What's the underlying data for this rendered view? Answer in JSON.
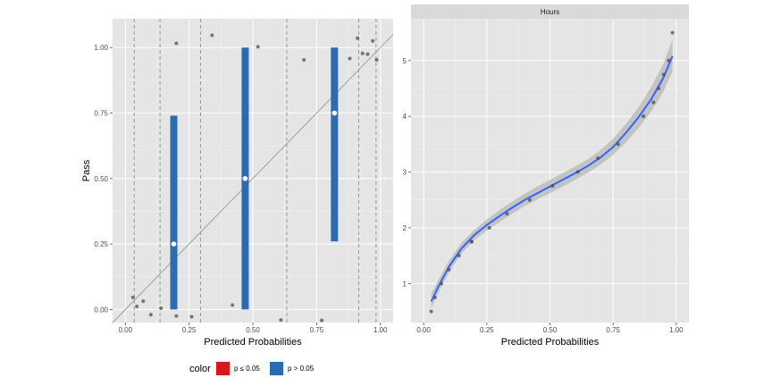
{
  "colors": {
    "panel_bg": "#e5e5e5",
    "grid_major": "#ffffff",
    "grid_minor": "#f2f2f2",
    "bar_significant": "#d7191c",
    "bar_nonsignificant": "#2b6cb0",
    "point": "#4d4d4d",
    "smooth_line": "#3366ff",
    "ribbon": "#bdbdbd",
    "reference_line": "#a0a0a0",
    "strip_bg": "#d9d9d9"
  },
  "chart_data": [
    {
      "type": "scatter",
      "panel": "left",
      "title": "",
      "xlabel": "Predicted Probabilities",
      "ylabel": "Pass",
      "xlim": [
        -0.05,
        1.05
      ],
      "ylim": [
        -0.05,
        1.11
      ],
      "x_ticks": [
        0.0,
        0.25,
        0.5,
        0.75,
        1.0
      ],
      "x_tick_labels": [
        "0.00",
        "0.25",
        "0.50",
        "0.75",
        "1.00"
      ],
      "y_ticks": [
        0.0,
        0.25,
        0.5,
        0.75,
        1.0
      ],
      "y_tick_labels": [
        "0.00",
        "0.25",
        "0.50",
        "0.75",
        "1.00"
      ],
      "reference_line": {
        "intercept": 0,
        "slope": 1
      },
      "bin_edges": [
        0.035,
        0.136,
        0.295,
        0.633,
        0.915,
        0.983
      ],
      "bins": [
        {
          "x": 0.19,
          "ymin": 0.0,
          "ymax": 0.74,
          "mean": 0.25,
          "significant": false
        },
        {
          "x": 0.47,
          "ymin": 0.0,
          "ymax": 1.0,
          "mean": 0.5,
          "significant": false
        },
        {
          "x": 0.82,
          "ymin": 0.26,
          "ymax": 1.0,
          "mean": 0.75,
          "significant": false
        }
      ],
      "points": [
        {
          "x": 0.03,
          "y": 0.046
        },
        {
          "x": 0.045,
          "y": 0.012
        },
        {
          "x": 0.07,
          "y": 0.032
        },
        {
          "x": 0.1,
          "y": -0.02
        },
        {
          "x": 0.14,
          "y": 0.005
        },
        {
          "x": 0.2,
          "y": 1.016
        },
        {
          "x": 0.2,
          "y": -0.025
        },
        {
          "x": 0.26,
          "y": -0.028
        },
        {
          "x": 0.34,
          "y": 1.047
        },
        {
          "x": 0.42,
          "y": 0.017
        },
        {
          "x": 0.52,
          "y": 1.003
        },
        {
          "x": 0.61,
          "y": -0.04
        },
        {
          "x": 0.7,
          "y": 0.953
        },
        {
          "x": 0.77,
          "y": -0.042
        },
        {
          "x": 0.88,
          "y": 0.958
        },
        {
          "x": 0.91,
          "y": 1.036
        },
        {
          "x": 0.93,
          "y": 0.978
        },
        {
          "x": 0.95,
          "y": 0.975
        },
        {
          "x": 0.97,
          "y": 1.025
        },
        {
          "x": 0.985,
          "y": 0.953
        }
      ],
      "legend": {
        "title": "color",
        "placement": "bottom-left",
        "entries": [
          {
            "label": "p ≤ 0.05",
            "color": "#d7191c"
          },
          {
            "label": "p > 0.05",
            "color": "#2b6cb0"
          }
        ]
      }
    },
    {
      "type": "scatter",
      "panel": "right",
      "facet_label": "Hours",
      "title": "",
      "xlabel": "Predicted Probabilities",
      "ylabel": "",
      "xlim": [
        -0.05,
        1.05
      ],
      "ylim": [
        0.3,
        5.75
      ],
      "x_ticks": [
        0.0,
        0.25,
        0.5,
        0.75,
        1.0
      ],
      "x_tick_labels": [
        "0.00",
        "0.25",
        "0.50",
        "0.75",
        "1.00"
      ],
      "y_ticks": [
        1,
        2,
        3,
        4,
        5
      ],
      "y_tick_labels": [
        "1",
        "2",
        "3",
        "4",
        "5"
      ],
      "points": [
        {
          "x": 0.03,
          "y": 0.5
        },
        {
          "x": 0.045,
          "y": 0.75
        },
        {
          "x": 0.07,
          "y": 1.0
        },
        {
          "x": 0.1,
          "y": 1.25
        },
        {
          "x": 0.14,
          "y": 1.5
        },
        {
          "x": 0.19,
          "y": 1.75
        },
        {
          "x": 0.19,
          "y": 1.75
        },
        {
          "x": 0.26,
          "y": 2.0
        },
        {
          "x": 0.33,
          "y": 2.25
        },
        {
          "x": 0.42,
          "y": 2.5
        },
        {
          "x": 0.51,
          "y": 2.75
        },
        {
          "x": 0.61,
          "y": 3.0
        },
        {
          "x": 0.69,
          "y": 3.25
        },
        {
          "x": 0.77,
          "y": 3.5
        },
        {
          "x": 0.87,
          "y": 4.0
        },
        {
          "x": 0.91,
          "y": 4.25
        },
        {
          "x": 0.93,
          "y": 4.5
        },
        {
          "x": 0.95,
          "y": 4.75
        },
        {
          "x": 0.97,
          "y": 5.0
        },
        {
          "x": 0.985,
          "y": 5.5
        }
      ],
      "smooth": {
        "x": [
          0.03,
          0.06,
          0.1,
          0.15,
          0.2,
          0.25,
          0.3,
          0.35,
          0.4,
          0.45,
          0.5,
          0.55,
          0.6,
          0.65,
          0.7,
          0.75,
          0.8,
          0.85,
          0.9,
          0.95,
          0.985
        ],
        "y": [
          0.68,
          0.96,
          1.3,
          1.63,
          1.87,
          2.05,
          2.21,
          2.36,
          2.5,
          2.62,
          2.74,
          2.86,
          2.98,
          3.11,
          3.26,
          3.45,
          3.7,
          3.98,
          4.3,
          4.7,
          5.08
        ],
        "ymin": [
          0.55,
          0.85,
          1.2,
          1.54,
          1.78,
          1.95,
          2.1,
          2.25,
          2.39,
          2.51,
          2.62,
          2.74,
          2.86,
          2.99,
          3.13,
          3.31,
          3.53,
          3.79,
          4.08,
          4.45,
          4.8
        ],
        "ymax": [
          0.82,
          1.08,
          1.41,
          1.73,
          1.96,
          2.15,
          2.32,
          2.47,
          2.61,
          2.74,
          2.86,
          2.98,
          3.1,
          3.23,
          3.39,
          3.6,
          3.86,
          4.16,
          4.52,
          4.95,
          5.38
        ]
      }
    }
  ]
}
